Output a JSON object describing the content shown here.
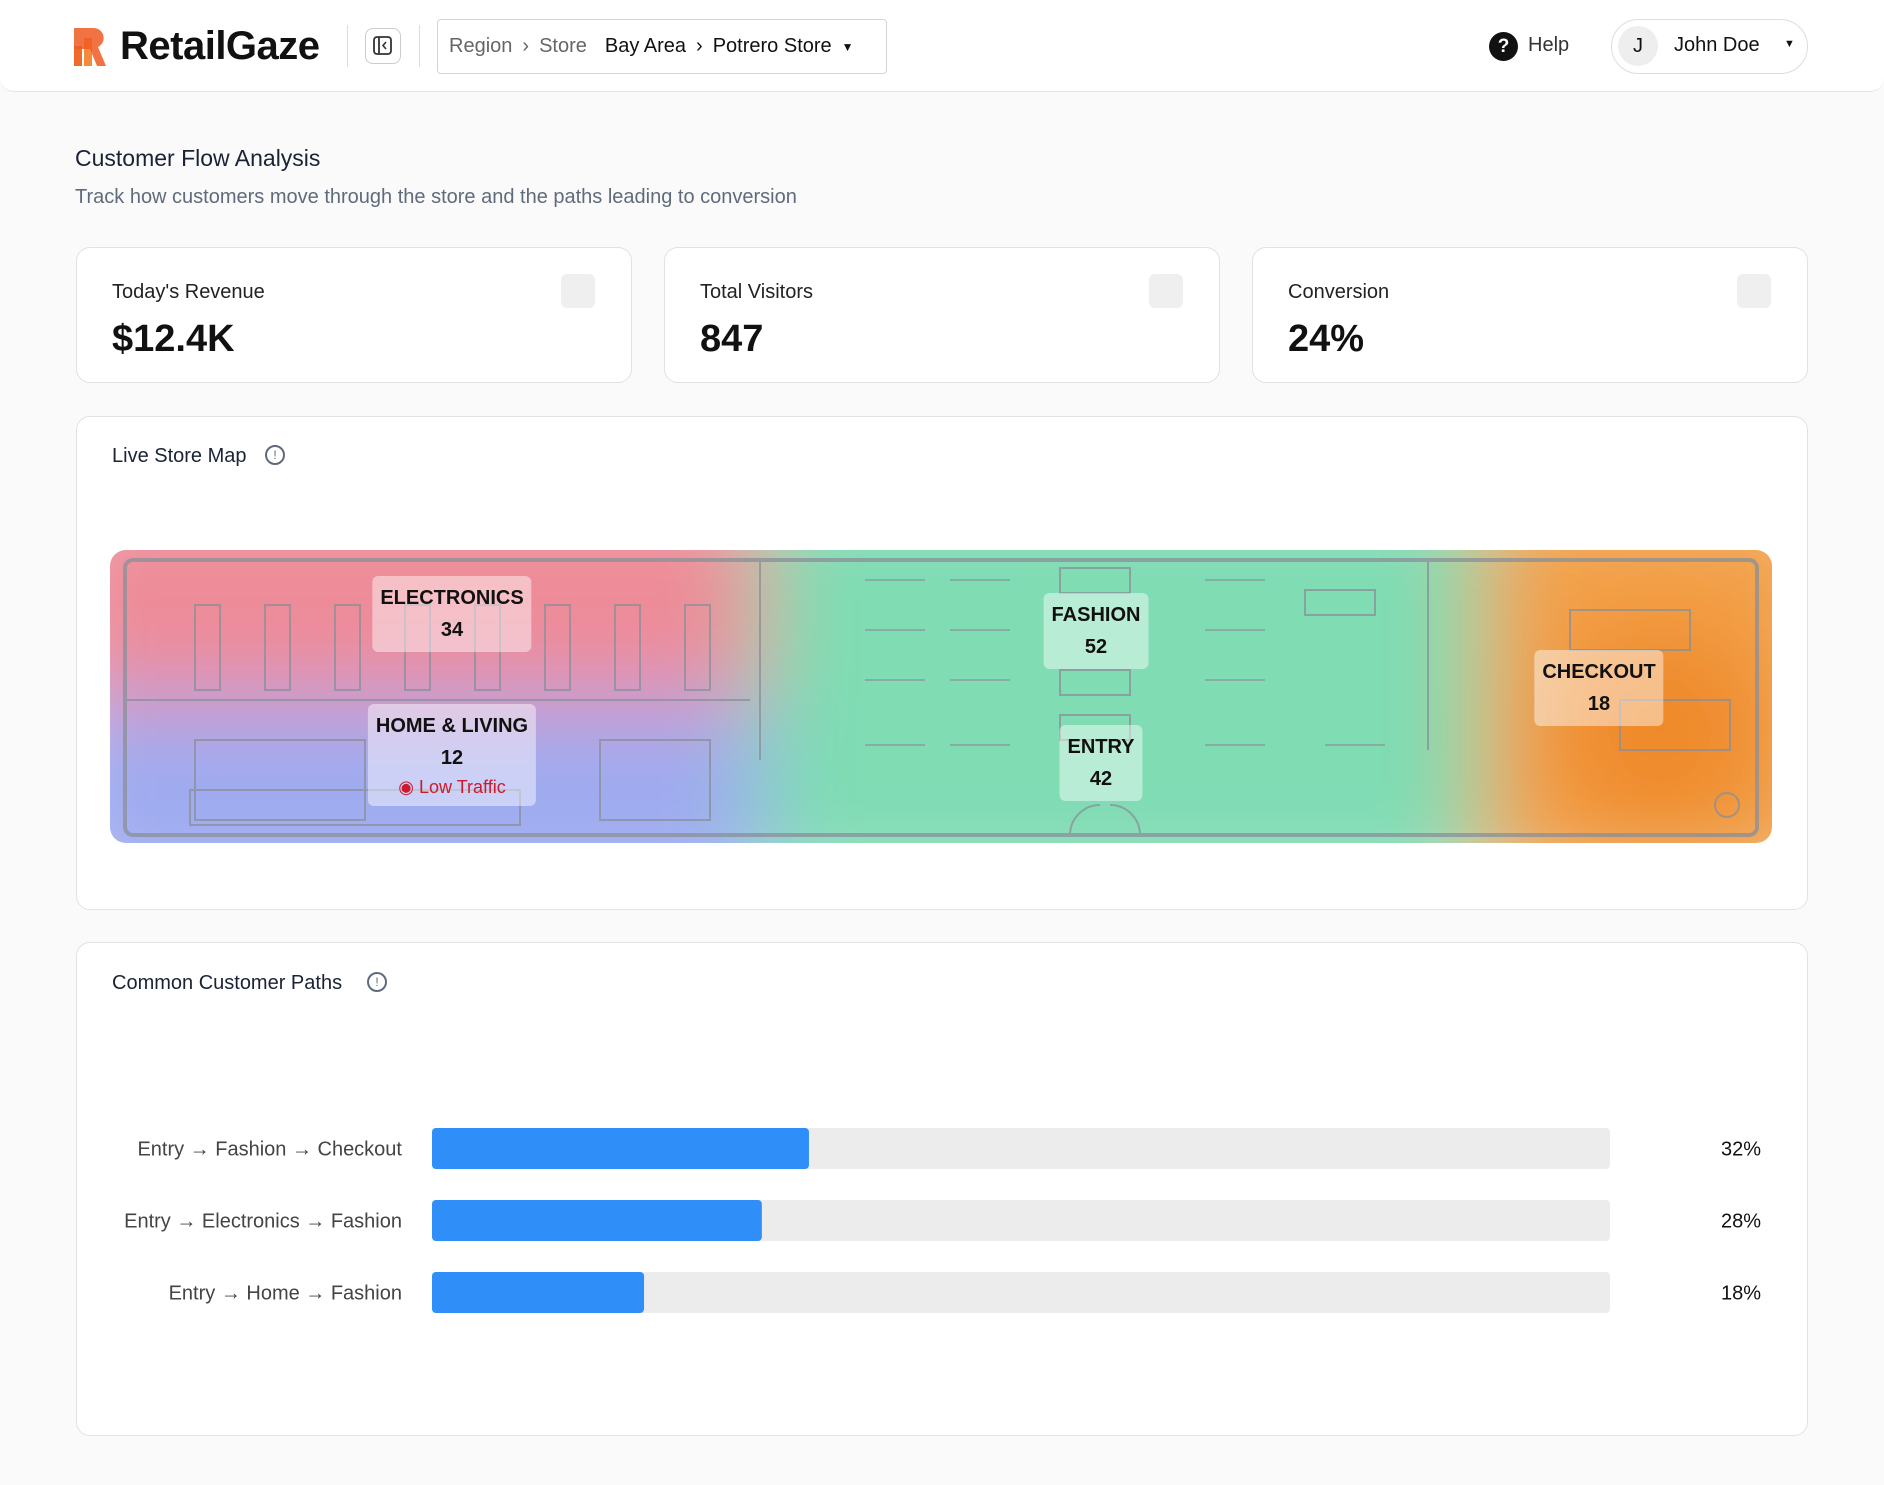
{
  "header": {
    "brand": "RetailGaze",
    "breadcrumb": [
      "Region",
      "Store",
      "Bay Area",
      "Potrero Store"
    ],
    "help": "Help",
    "user_initial": "J",
    "user_name": "John Doe"
  },
  "page": {
    "title": "Customer Flow Analysis",
    "subtitle": "Track how customers move through the store and the paths leading to conversion"
  },
  "kpis": [
    {
      "label": "Today's Revenue",
      "value": "$12.4K"
    },
    {
      "label": "Total Visitors",
      "value": "847"
    },
    {
      "label": "Conversion",
      "value": "24%"
    }
  ],
  "store_map": {
    "title": "Live Store Map",
    "zones": [
      {
        "name": "ELECTRONICS",
        "count": 34
      },
      {
        "name": "HOME & LIVING",
        "count": 12
      },
      {
        "name": "FASHION",
        "count": 52
      },
      {
        "name": "ENTRY",
        "count": 42
      },
      {
        "name": "CHECKOUT",
        "count": 18
      }
    ],
    "annotation": "Low Traffic"
  },
  "chart_data": {
    "type": "bar",
    "orientation": "horizontal",
    "title": "Common Customer Paths",
    "categories": [
      "Entry → Fashion → Checkout",
      "Entry → Electronics → Fashion",
      "Entry → Home → Fashion"
    ],
    "values": [
      32,
      28,
      18
    ],
    "value_labels": [
      "32%",
      "28%",
      "18%"
    ],
    "color": "#2f8ef7",
    "xlim": [
      0,
      100
    ]
  }
}
